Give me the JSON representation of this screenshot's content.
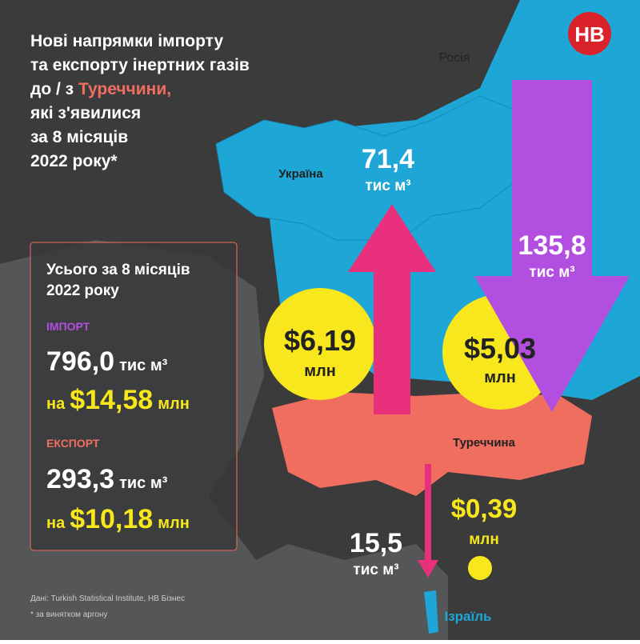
{
  "title": {
    "lines": [
      "Нові напрямки імпорту",
      "та експорту інертних газів"
    ],
    "line3_prefix": "до / з ",
    "line3_highlight": "Туреччини,",
    "lines_rest": [
      "які з'явилися",
      "за 8 місяців",
      "2022 року*"
    ]
  },
  "logo": "НВ",
  "countries": {
    "russia": "Росія",
    "ukraine": "Україна",
    "turkey": "Туреччина",
    "israel": "Ізраїль"
  },
  "flows": [
    {
      "volume": "71,4",
      "volume_unit": "тис м³",
      "value": "$6,19",
      "value_unit": "млн"
    },
    {
      "volume": "135,8",
      "volume_unit": "тис м³",
      "value": "$5,03",
      "value_unit": "млн"
    },
    {
      "volume": "15,5",
      "volume_unit": "тис м³",
      "value": "$0,39",
      "value_unit": "млн"
    }
  ],
  "summary": {
    "heading": [
      "Усього за 8 місяців",
      "2022 року"
    ],
    "import": {
      "label": "ІМПОРТ",
      "volume": "796,0",
      "volume_unit": "тис м³",
      "prefix": "на",
      "value": "$14,58",
      "value_unit": "млн"
    },
    "export": {
      "label": "ЕКСПОРТ",
      "volume": "293,3",
      "volume_unit": "тис м³",
      "prefix": "на",
      "value": "$10,18",
      "value_unit": "млн"
    }
  },
  "source": "Дані: Turkish Statistical Institute, НВ Бізнес",
  "footnote": "* за винятком аргону"
}
